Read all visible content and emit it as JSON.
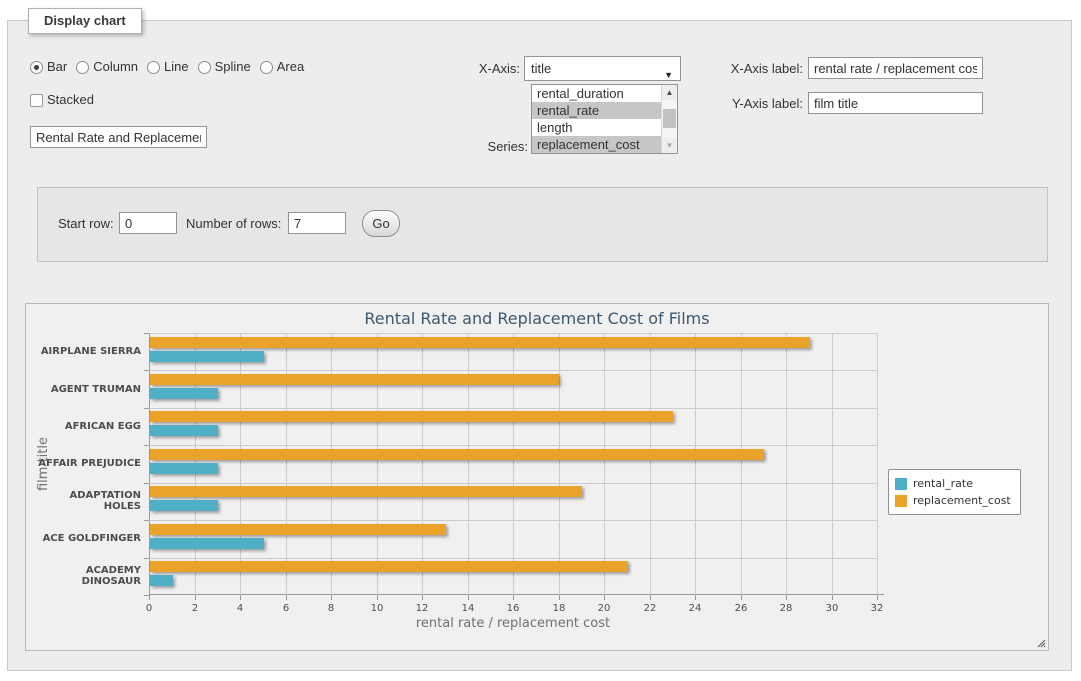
{
  "window": {
    "legend_title": "Display chart"
  },
  "controls": {
    "chart_types": [
      {
        "label": "Bar",
        "checked": true
      },
      {
        "label": "Column",
        "checked": false
      },
      {
        "label": "Line",
        "checked": false
      },
      {
        "label": "Spline",
        "checked": false
      },
      {
        "label": "Area",
        "checked": false
      }
    ],
    "stacked": {
      "label": "Stacked",
      "checked": false
    },
    "chart_title_value": "Rental Rate and Replacement Cost of Films",
    "x_axis": {
      "label": "X-Axis:",
      "selected": "title",
      "dropdown_arrow": "▼"
    },
    "series": {
      "label": "Series:",
      "options": [
        {
          "label": "rental_duration",
          "selected": false
        },
        {
          "label": "rental_rate",
          "selected": true
        },
        {
          "label": "length",
          "selected": false
        },
        {
          "label": "replacement_cost",
          "selected": true
        }
      ],
      "scroll_up_glyph": "▲",
      "scroll_down_glyph": "▼"
    },
    "x_axis_label": {
      "label": "X-Axis label:",
      "value": "rental rate / replacement cost"
    },
    "y_axis_label": {
      "label": "Y-Axis label:",
      "value": "film title"
    }
  },
  "row_controls": {
    "start_row": {
      "label": "Start row:",
      "value": "0"
    },
    "number_of_rows": {
      "label": "Number of rows:",
      "value": "7"
    },
    "go_button": "Go"
  },
  "chart_data": {
    "type": "bar",
    "orientation": "horizontal",
    "title": "Rental Rate and Replacement Cost of Films",
    "categories": [
      "AIRPLANE SIERRA",
      "AGENT TRUMAN",
      "AFRICAN EGG",
      "AFFAIR PREJUDICE",
      "ADAPTATION HOLES",
      "ACE GOLDFINGER",
      "ACADEMY DINOSAUR"
    ],
    "series": [
      {
        "name": "rental_rate",
        "color": "#4FAFC7",
        "values": [
          4.99,
          2.99,
          2.99,
          2.99,
          2.99,
          4.99,
          0.99
        ]
      },
      {
        "name": "replacement_cost",
        "color": "#EAA22B",
        "values": [
          28.99,
          17.99,
          22.99,
          26.99,
          18.99,
          12.99,
          20.99
        ]
      }
    ],
    "xlabel": "rental rate / replacement cost",
    "ylabel": "film title",
    "xlim": [
      0,
      32
    ],
    "x_tick_step": 2,
    "grid": true,
    "legend_position": "right-middle"
  }
}
